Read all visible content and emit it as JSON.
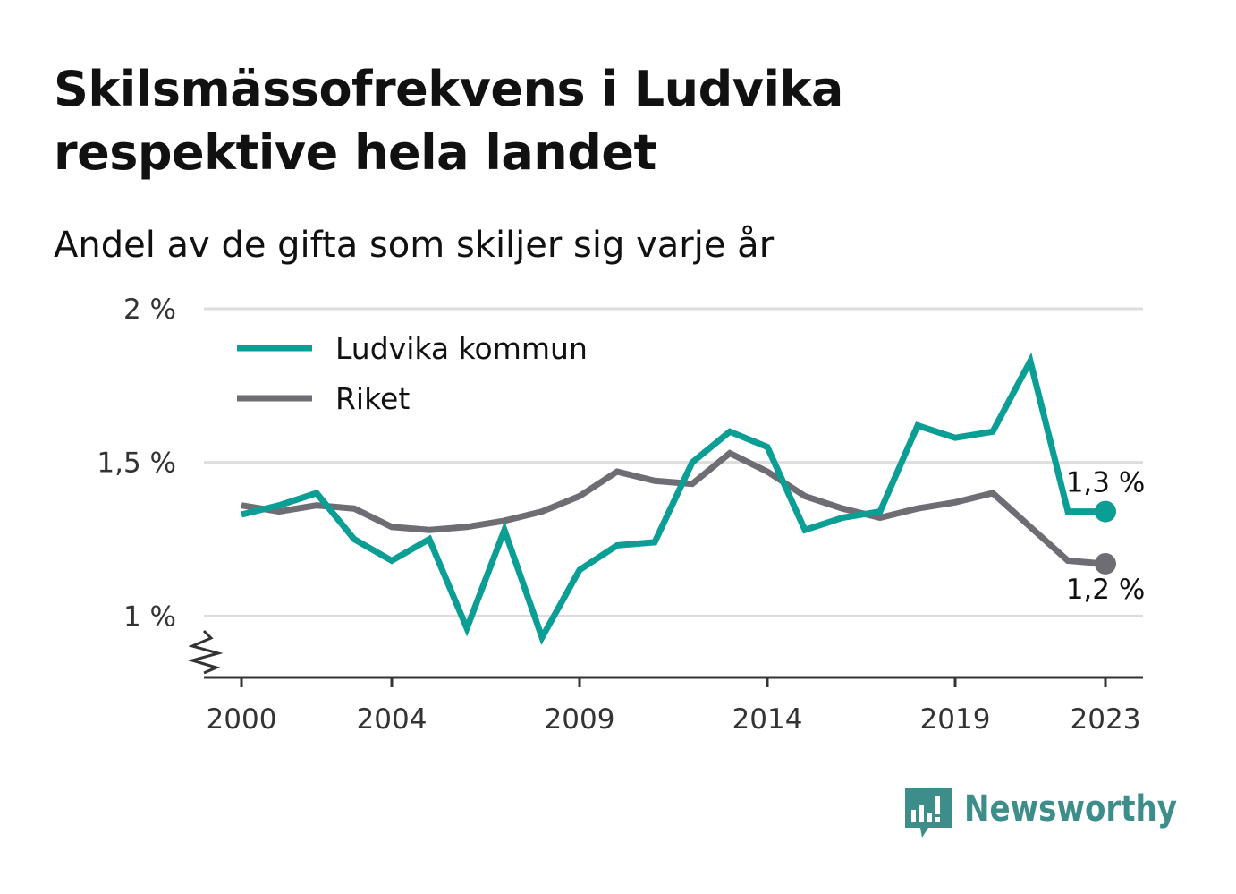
{
  "title_lines": [
    "Skilsmässofrekvens i Ludvika",
    "respektive hela landet"
  ],
  "subtitle": "Andel av de gifta som skiljer sig varje år",
  "brand": "Newsworthy",
  "colors": {
    "ludvika": "#0a9e94",
    "riket": "#6e6d73",
    "grid": "#dddddd",
    "axis": "#333333",
    "brand": "#3d8e8a"
  },
  "chart_data": {
    "type": "line",
    "title": "Skilsmässofrekvens i Ludvika respektive hela landet",
    "subtitle": "Andel av de gifta som skiljer sig varje år",
    "x": [
      2000,
      2001,
      2002,
      2003,
      2004,
      2005,
      2006,
      2007,
      2008,
      2009,
      2010,
      2011,
      2012,
      2013,
      2014,
      2015,
      2016,
      2017,
      2018,
      2019,
      2020,
      2021,
      2022,
      2023
    ],
    "xlim": [
      1999,
      2024
    ],
    "x_ticks": [
      2000,
      2004,
      2009,
      2014,
      2019,
      2023
    ],
    "ylim": [
      0.8,
      2.0
    ],
    "y_ticks": [
      {
        "value": 1.0,
        "label": "1 %"
      },
      {
        "value": 1.5,
        "label": "1,5 %"
      },
      {
        "value": 2.0,
        "label": "2 %"
      }
    ],
    "y_axis_break": true,
    "grid": true,
    "legend_position": "top-left",
    "series": [
      {
        "name": "Ludvika kommun",
        "color": "#0a9e94",
        "values": [
          1.33,
          1.36,
          1.4,
          1.25,
          1.18,
          1.25,
          0.96,
          1.28,
          0.93,
          1.15,
          1.23,
          1.24,
          1.5,
          1.6,
          1.55,
          1.28,
          1.32,
          1.34,
          1.62,
          1.58,
          1.6,
          1.83,
          1.34,
          1.34
        ],
        "end_label": "1,3 %"
      },
      {
        "name": "Riket",
        "color": "#6e6d73",
        "values": [
          1.36,
          1.34,
          1.36,
          1.35,
          1.29,
          1.28,
          1.29,
          1.31,
          1.34,
          1.39,
          1.47,
          1.44,
          1.43,
          1.53,
          1.47,
          1.39,
          1.35,
          1.32,
          1.35,
          1.37,
          1.4,
          1.29,
          1.18,
          1.17
        ],
        "end_label": "1,2 %"
      }
    ]
  }
}
